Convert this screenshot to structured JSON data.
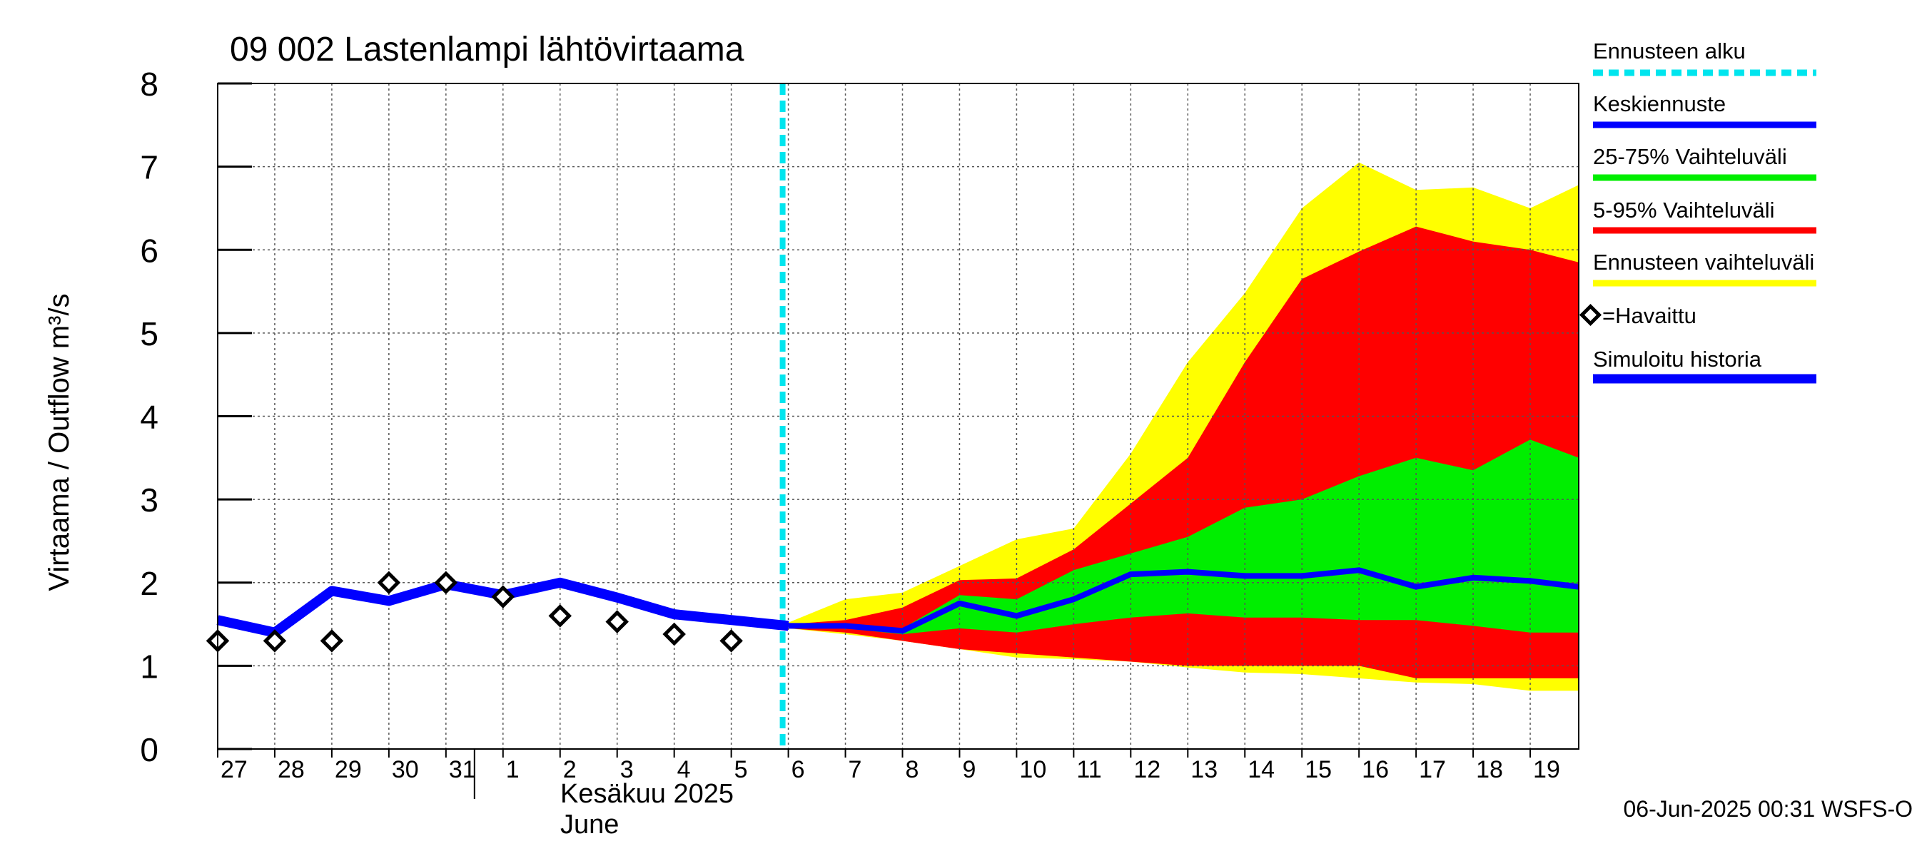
{
  "chart_data": {
    "type": "area",
    "title": "09 002 Lastenlampi lähtövirtaama",
    "ylabel": "Virtaama / Outflow    m³/s",
    "ylim": [
      0,
      8
    ],
    "y_ticks": [
      "0",
      "1",
      "2",
      "3",
      "4",
      "5",
      "6",
      "7",
      "8"
    ],
    "x_tick_labels": [
      "27",
      "28",
      "29",
      "30",
      "31",
      "1",
      "2",
      "3",
      "4",
      "5",
      "6",
      "7",
      "8",
      "9",
      "10",
      "11",
      "12",
      "13",
      "14",
      "15",
      "16",
      "17",
      "18",
      "19"
    ],
    "month_label_fi": "Kesäkuu  2025",
    "month_label_en": "June",
    "timestamp": "06-Jun-2025 00:31 WSFS-O",
    "grid": true,
    "legend_placement": "right",
    "legend": {
      "forecast_start": "Ennusteen alku",
      "mean_forecast": "Keskiennuste",
      "range_25_75": "25-75% Vaihteluväli",
      "range_5_95": "5-95% Vaihteluväli",
      "forecast_range": "Ennusteen vaihteluväli",
      "observed": "=Havaittu",
      "simulated_history": "Simuloitu historia"
    },
    "colors": {
      "forecast_start": "#00e5ee",
      "mean_forecast": "#0000ff",
      "range_25_75": "#00ee00",
      "range_5_95": "#ff0000",
      "forecast_range": "#ffff00",
      "simulated_history": "#0000ff",
      "observed": "#000000"
    },
    "x_start_day": -10,
    "x_end_day": 13.85,
    "forecast_start_day": -0.1,
    "simulated_history": {
      "days": [
        -10,
        -9,
        -8,
        -7,
        -6,
        -5,
        -4,
        -3,
        -2,
        -1,
        0
      ],
      "values": [
        1.55,
        1.4,
        1.9,
        1.78,
        1.98,
        1.85,
        2.0,
        1.82,
        1.62,
        1.55,
        1.48
      ]
    },
    "observed": {
      "days": [
        -10,
        -9,
        -8,
        -7,
        -6,
        -5,
        -4,
        -3,
        -2,
        -1
      ],
      "values": [
        1.3,
        1.3,
        1.3,
        2.0,
        2.0,
        1.83,
        1.6,
        1.53,
        1.38,
        1.3
      ]
    },
    "forecast_days": [
      0,
      1,
      2,
      3,
      4,
      5,
      6,
      7,
      8,
      9,
      10,
      11,
      12,
      13,
      13.85
    ],
    "mean_forecast": [
      1.48,
      1.48,
      1.42,
      1.75,
      1.6,
      1.8,
      2.1,
      2.13,
      2.08,
      2.08,
      2.15,
      1.95,
      2.06,
      2.02,
      1.95
    ],
    "range_25_75": {
      "lower": [
        1.47,
        1.45,
        1.38,
        1.45,
        1.4,
        1.5,
        1.58,
        1.63,
        1.58,
        1.58,
        1.55,
        1.55,
        1.48,
        1.4,
        1.4
      ],
      "upper": [
        1.49,
        1.5,
        1.45,
        1.85,
        1.8,
        2.15,
        2.35,
        2.55,
        2.9,
        3.0,
        3.28,
        3.5,
        3.35,
        3.72,
        3.5
      ]
    },
    "range_5_95": {
      "lower": [
        1.45,
        1.4,
        1.3,
        1.2,
        1.15,
        1.1,
        1.05,
        1.0,
        1.0,
        1.0,
        1.0,
        0.85,
        0.85,
        0.85,
        0.85
      ],
      "upper": [
        1.5,
        1.55,
        1.7,
        2.03,
        2.05,
        2.4,
        2.95,
        3.5,
        4.65,
        5.65,
        5.98,
        6.28,
        6.1,
        6.0,
        5.85
      ]
    },
    "forecast_range": {
      "lower": [
        1.45,
        1.38,
        1.3,
        1.2,
        1.1,
        1.08,
        1.05,
        0.98,
        0.92,
        0.9,
        0.85,
        0.8,
        0.78,
        0.7,
        0.7
      ],
      "upper": [
        1.52,
        1.8,
        1.88,
        2.2,
        2.52,
        2.65,
        3.55,
        4.65,
        5.48,
        6.5,
        7.05,
        6.72,
        6.75,
        6.5,
        6.78
      ]
    }
  }
}
